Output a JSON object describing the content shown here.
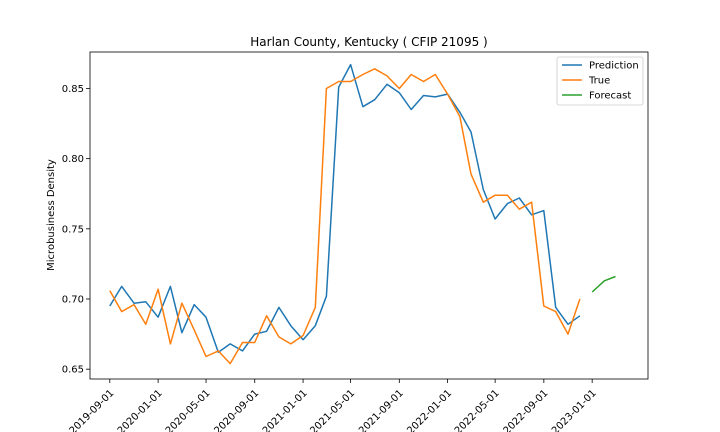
{
  "chart_data": {
    "type": "line",
    "title": "Harlan County, Kentucky ( CFIP 21095 )",
    "xlabel": "",
    "ylabel": "Microbusiness Density",
    "ylim": [
      0.643,
      0.876
    ],
    "xlim": [
      "2019-07-13",
      "2023-05-22"
    ],
    "x_ticks": [
      "2019-09-01",
      "2020-01-01",
      "2020-05-01",
      "2020-09-01",
      "2021-01-01",
      "2021-05-01",
      "2021-09-01",
      "2022-01-01",
      "2022-05-01",
      "2022-09-01",
      "2023-01-01"
    ],
    "y_ticks": [
      0.65,
      0.7,
      0.75,
      0.8,
      0.85
    ],
    "y_tick_labels": [
      "0.65",
      "0.70",
      "0.75",
      "0.80",
      "0.85"
    ],
    "grid": false,
    "legend_position": "top-right",
    "series": [
      {
        "name": "Prediction",
        "color": "#1f77b4",
        "x": [
          "2019-09-01",
          "2019-10-01",
          "2019-11-01",
          "2019-12-01",
          "2020-01-01",
          "2020-02-01",
          "2020-03-01",
          "2020-04-01",
          "2020-05-01",
          "2020-06-01",
          "2020-07-01",
          "2020-08-01",
          "2020-09-01",
          "2020-10-01",
          "2020-11-01",
          "2020-12-01",
          "2021-01-01",
          "2021-02-01",
          "2021-03-01",
          "2021-04-01",
          "2021-05-01",
          "2021-06-01",
          "2021-07-01",
          "2021-08-01",
          "2021-09-01",
          "2021-10-01",
          "2021-11-01",
          "2021-12-01",
          "2022-01-01",
          "2022-02-01",
          "2022-03-01",
          "2022-04-01",
          "2022-05-01",
          "2022-06-01",
          "2022-07-01",
          "2022-08-01",
          "2022-09-01",
          "2022-10-01",
          "2022-11-01",
          "2022-12-01"
        ],
        "values": [
          0.695,
          0.709,
          0.697,
          0.698,
          0.687,
          0.709,
          0.676,
          0.696,
          0.687,
          0.662,
          0.668,
          0.663,
          0.675,
          0.677,
          0.694,
          0.681,
          0.671,
          0.681,
          0.702,
          0.851,
          0.867,
          0.837,
          0.842,
          0.853,
          0.847,
          0.835,
          0.845,
          0.844,
          0.846,
          0.833,
          0.819,
          0.778,
          0.757,
          0.768,
          0.772,
          0.76,
          0.763,
          0.694,
          0.682,
          0.688
        ]
      },
      {
        "name": "True",
        "color": "#ff7f0e",
        "x": [
          "2019-09-01",
          "2019-10-01",
          "2019-11-01",
          "2019-12-01",
          "2020-01-01",
          "2020-02-01",
          "2020-03-01",
          "2020-04-01",
          "2020-05-01",
          "2020-06-01",
          "2020-07-01",
          "2020-08-01",
          "2020-09-01",
          "2020-10-01",
          "2020-11-01",
          "2020-12-01",
          "2021-01-01",
          "2021-02-01",
          "2021-03-01",
          "2021-04-01",
          "2021-05-01",
          "2021-06-01",
          "2021-07-01",
          "2021-08-01",
          "2021-09-01",
          "2021-10-01",
          "2021-11-01",
          "2021-12-01",
          "2022-01-01",
          "2022-02-01",
          "2022-03-01",
          "2022-04-01",
          "2022-05-01",
          "2022-06-01",
          "2022-07-01",
          "2022-08-01",
          "2022-09-01",
          "2022-10-01",
          "2022-11-01",
          "2022-12-01"
        ],
        "values": [
          0.706,
          0.691,
          0.696,
          0.682,
          0.707,
          0.668,
          0.697,
          0.678,
          0.659,
          0.663,
          0.654,
          0.669,
          0.669,
          0.688,
          0.673,
          0.668,
          0.674,
          0.694,
          0.85,
          0.855,
          0.855,
          0.86,
          0.864,
          0.859,
          0.85,
          0.86,
          0.855,
          0.86,
          0.846,
          0.83,
          0.789,
          0.769,
          0.774,
          0.774,
          0.764,
          0.769,
          0.695,
          0.691,
          0.675,
          0.7
        ]
      },
      {
        "name": "Forecast",
        "color": "#2ca02c",
        "x": [
          "2023-01-01",
          "2023-02-01",
          "2023-03-01"
        ],
        "values": [
          0.705,
          0.713,
          0.716
        ]
      }
    ]
  }
}
